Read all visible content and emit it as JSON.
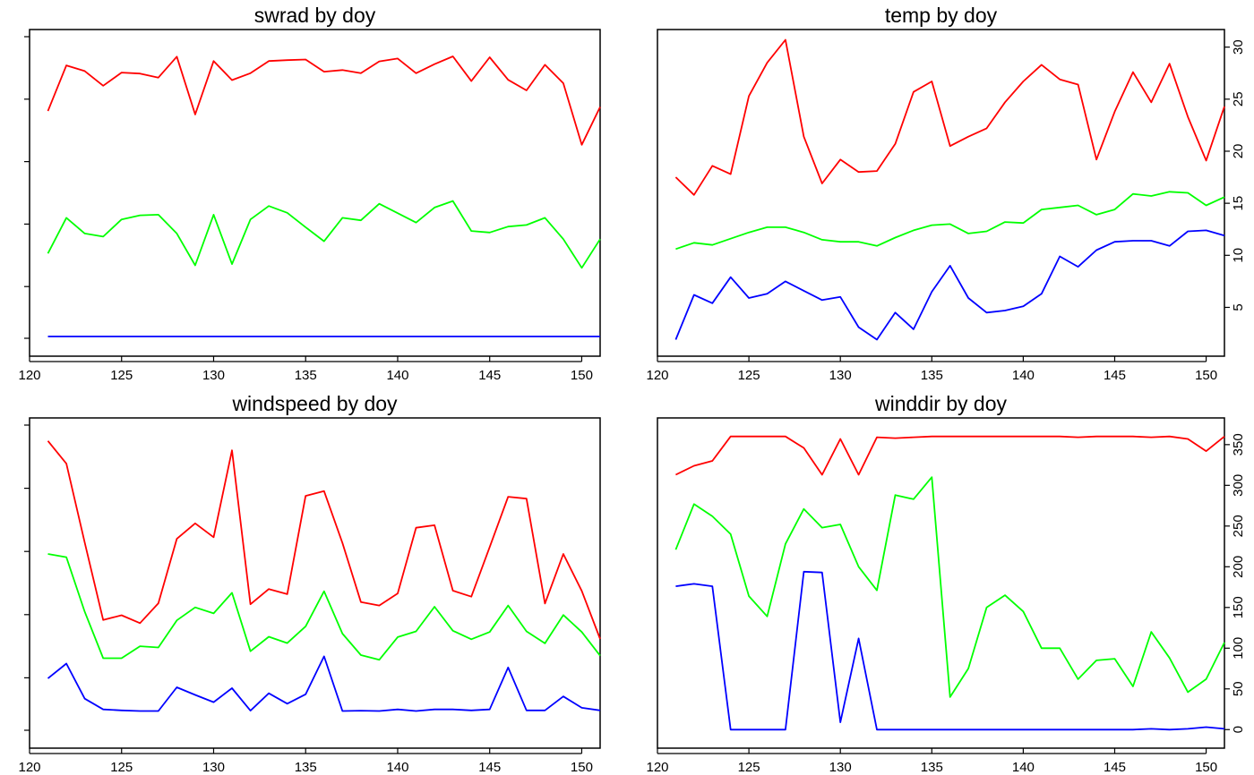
{
  "chart_data": [
    {
      "type": "line",
      "title": "swrad by doy",
      "x": [
        121,
        122,
        123,
        124,
        125,
        126,
        127,
        128,
        129,
        130,
        131,
        132,
        133,
        134,
        135,
        136,
        137,
        138,
        139,
        140,
        141,
        142,
        143,
        144,
        145,
        146,
        147,
        148,
        149,
        150,
        151
      ],
      "xticks": [
        120,
        125,
        130,
        135,
        140,
        145,
        150
      ],
      "xlim": [
        120,
        151
      ],
      "ylim": [
        0,
        1
      ],
      "yticks": [],
      "colors": [
        "#ff0000",
        "#00ff00",
        "#0000ff"
      ],
      "series": [
        {
          "values": [
            0.762,
            0.908,
            0.89,
            0.843,
            0.885,
            0.882,
            0.869,
            0.936,
            0.751,
            0.922,
            0.861,
            0.883,
            0.922,
            0.925,
            0.927,
            0.888,
            0.893,
            0.883,
            0.921,
            0.93,
            0.883,
            0.912,
            0.937,
            0.858,
            0.934,
            0.862,
            0.828,
            0.91,
            0.851,
            0.654,
            0.775
          ]
        },
        {
          "values": [
            0.306,
            0.42,
            0.37,
            0.36,
            0.415,
            0.428,
            0.43,
            0.37,
            0.268,
            0.43,
            0.272,
            0.415,
            0.458,
            0.436,
            0.39,
            0.345,
            0.42,
            0.412,
            0.465,
            0.435,
            0.405,
            0.453,
            0.474,
            0.378,
            0.373,
            0.392,
            0.397,
            0.42,
            0.352,
            0.26,
            0.352
          ]
        },
        {
          "values": [
            0.04,
            0.04,
            0.04,
            0.04,
            0.04,
            0.04,
            0.04,
            0.04,
            0.04,
            0.04,
            0.04,
            0.04,
            0.04,
            0.04,
            0.04,
            0.04,
            0.04,
            0.04,
            0.04,
            0.04,
            0.04,
            0.04,
            0.04,
            0.04,
            0.04,
            0.04,
            0.04,
            0.04,
            0.04,
            0.04,
            0.04
          ]
        }
      ]
    },
    {
      "type": "line",
      "title": "temp by doy",
      "x": [
        121,
        122,
        123,
        124,
        125,
        126,
        127,
        128,
        129,
        130,
        131,
        132,
        133,
        134,
        135,
        136,
        137,
        138,
        139,
        140,
        141,
        142,
        143,
        144,
        145,
        146,
        147,
        148,
        149,
        150,
        151
      ],
      "xticks": [
        120,
        125,
        130,
        135,
        140,
        145,
        150
      ],
      "xlim": [
        120,
        151
      ],
      "ylim": [
        1,
        31
      ],
      "yticks": [
        5,
        10,
        15,
        20,
        25,
        30
      ],
      "colors": [
        "#ff0000",
        "#00ff00",
        "#0000ff"
      ],
      "series": [
        {
          "values": [
            17.5,
            15.8,
            18.6,
            17.8,
            25.3,
            28.5,
            30.7,
            21.4,
            16.9,
            19.2,
            18.0,
            18.1,
            20.7,
            25.7,
            26.7,
            20.5,
            21.4,
            22.2,
            24.7,
            26.7,
            28.3,
            26.9,
            26.4,
            19.2,
            23.8,
            27.6,
            24.7,
            28.4,
            23.3,
            19.1,
            24.3
          ]
        },
        {
          "values": [
            10.6,
            11.2,
            11.0,
            11.6,
            12.2,
            12.7,
            12.7,
            12.2,
            11.5,
            11.3,
            11.3,
            10.9,
            11.7,
            12.4,
            12.9,
            13.0,
            12.1,
            12.3,
            13.2,
            13.1,
            14.4,
            14.6,
            14.8,
            13.9,
            14.4,
            15.9,
            15.7,
            16.1,
            16.0,
            14.8,
            15.6
          ]
        },
        {
          "values": [
            1.9,
            6.2,
            5.4,
            7.9,
            5.9,
            6.3,
            7.5,
            6.6,
            5.7,
            6.0,
            3.1,
            1.9,
            4.5,
            2.9,
            6.5,
            9.0,
            5.9,
            4.5,
            4.7,
            5.1,
            6.3,
            9.9,
            8.9,
            10.5,
            11.3,
            11.4,
            11.4,
            10.9,
            12.3,
            12.4,
            11.9
          ]
        }
      ]
    },
    {
      "type": "line",
      "title": "windspeed by doy",
      "x": [
        121,
        122,
        123,
        124,
        125,
        126,
        127,
        128,
        129,
        130,
        131,
        132,
        133,
        134,
        135,
        136,
        137,
        138,
        139,
        140,
        141,
        142,
        143,
        144,
        145,
        146,
        147,
        148,
        149,
        150,
        151
      ],
      "xticks": [
        120,
        125,
        130,
        135,
        140,
        145,
        150
      ],
      "xlim": [
        120,
        151
      ],
      "ylim": [
        0,
        1
      ],
      "yticks": [],
      "colors": [
        "#ff0000",
        "#00ff00",
        "#0000ff"
      ],
      "series": [
        {
          "values": [
            0.95,
            0.878,
            0.628,
            0.383,
            0.398,
            0.373,
            0.436,
            0.64,
            0.689,
            0.645,
            0.92,
            0.433,
            0.481,
            0.465,
            0.776,
            0.791,
            0.627,
            0.44,
            0.429,
            0.467,
            0.675,
            0.683,
            0.476,
            0.457,
            0.614,
            0.773,
            0.767,
            0.435,
            0.592,
            0.475,
            0.323
          ]
        },
        {
          "values": [
            0.592,
            0.582,
            0.409,
            0.262,
            0.262,
            0.3,
            0.296,
            0.382,
            0.423,
            0.404,
            0.469,
            0.284,
            0.33,
            0.31,
            0.363,
            0.474,
            0.34,
            0.272,
            0.257,
            0.329,
            0.347,
            0.425,
            0.349,
            0.322,
            0.345,
            0.429,
            0.347,
            0.309,
            0.399,
            0.345,
            0.27
          ]
        },
        {
          "values": [
            0.198,
            0.245,
            0.134,
            0.1,
            0.097,
            0.095,
            0.095,
            0.17,
            0.146,
            0.123,
            0.167,
            0.096,
            0.151,
            0.118,
            0.148,
            0.268,
            0.095,
            0.096,
            0.095,
            0.1,
            0.095,
            0.1,
            0.1,
            0.097,
            0.1,
            0.233,
            0.097,
            0.097,
            0.141,
            0.105,
            0.097
          ]
        }
      ]
    },
    {
      "type": "line",
      "title": "winddir by doy",
      "x": [
        121,
        122,
        123,
        124,
        125,
        126,
        127,
        128,
        129,
        130,
        131,
        132,
        133,
        134,
        135,
        136,
        137,
        138,
        139,
        140,
        141,
        142,
        143,
        144,
        145,
        146,
        147,
        148,
        149,
        150,
        151
      ],
      "xticks": [
        120,
        125,
        130,
        135,
        140,
        145,
        150
      ],
      "xlim": [
        120,
        151
      ],
      "ylim": [
        -14,
        374
      ],
      "yticks": [
        0,
        50,
        100,
        150,
        200,
        250,
        300,
        350
      ],
      "colors": [
        "#ff0000",
        "#00ff00",
        "#0000ff"
      ],
      "series": [
        {
          "values": [
            313,
            324,
            330,
            360,
            360,
            360,
            360,
            346,
            313,
            357,
            313,
            359,
            358,
            359,
            360,
            360,
            360,
            360,
            360,
            360,
            360,
            360,
            359,
            360,
            360,
            360,
            359,
            360,
            357,
            342,
            360
          ]
        },
        {
          "values": [
            221,
            277,
            262,
            240,
            164,
            139,
            228,
            271,
            248,
            252,
            200,
            171,
            288,
            283,
            310,
            40,
            75,
            150,
            165,
            145,
            100,
            100,
            62,
            85,
            87,
            53,
            120,
            88,
            46,
            62,
            107
          ]
        },
        {
          "values": [
            176,
            179,
            176,
            0,
            0,
            0,
            0,
            194,
            193,
            9,
            112,
            0,
            0,
            0,
            0,
            0,
            0,
            0,
            0,
            0,
            0,
            0,
            0,
            0,
            0,
            0,
            1,
            0,
            1,
            3,
            1
          ]
        }
      ]
    }
  ]
}
